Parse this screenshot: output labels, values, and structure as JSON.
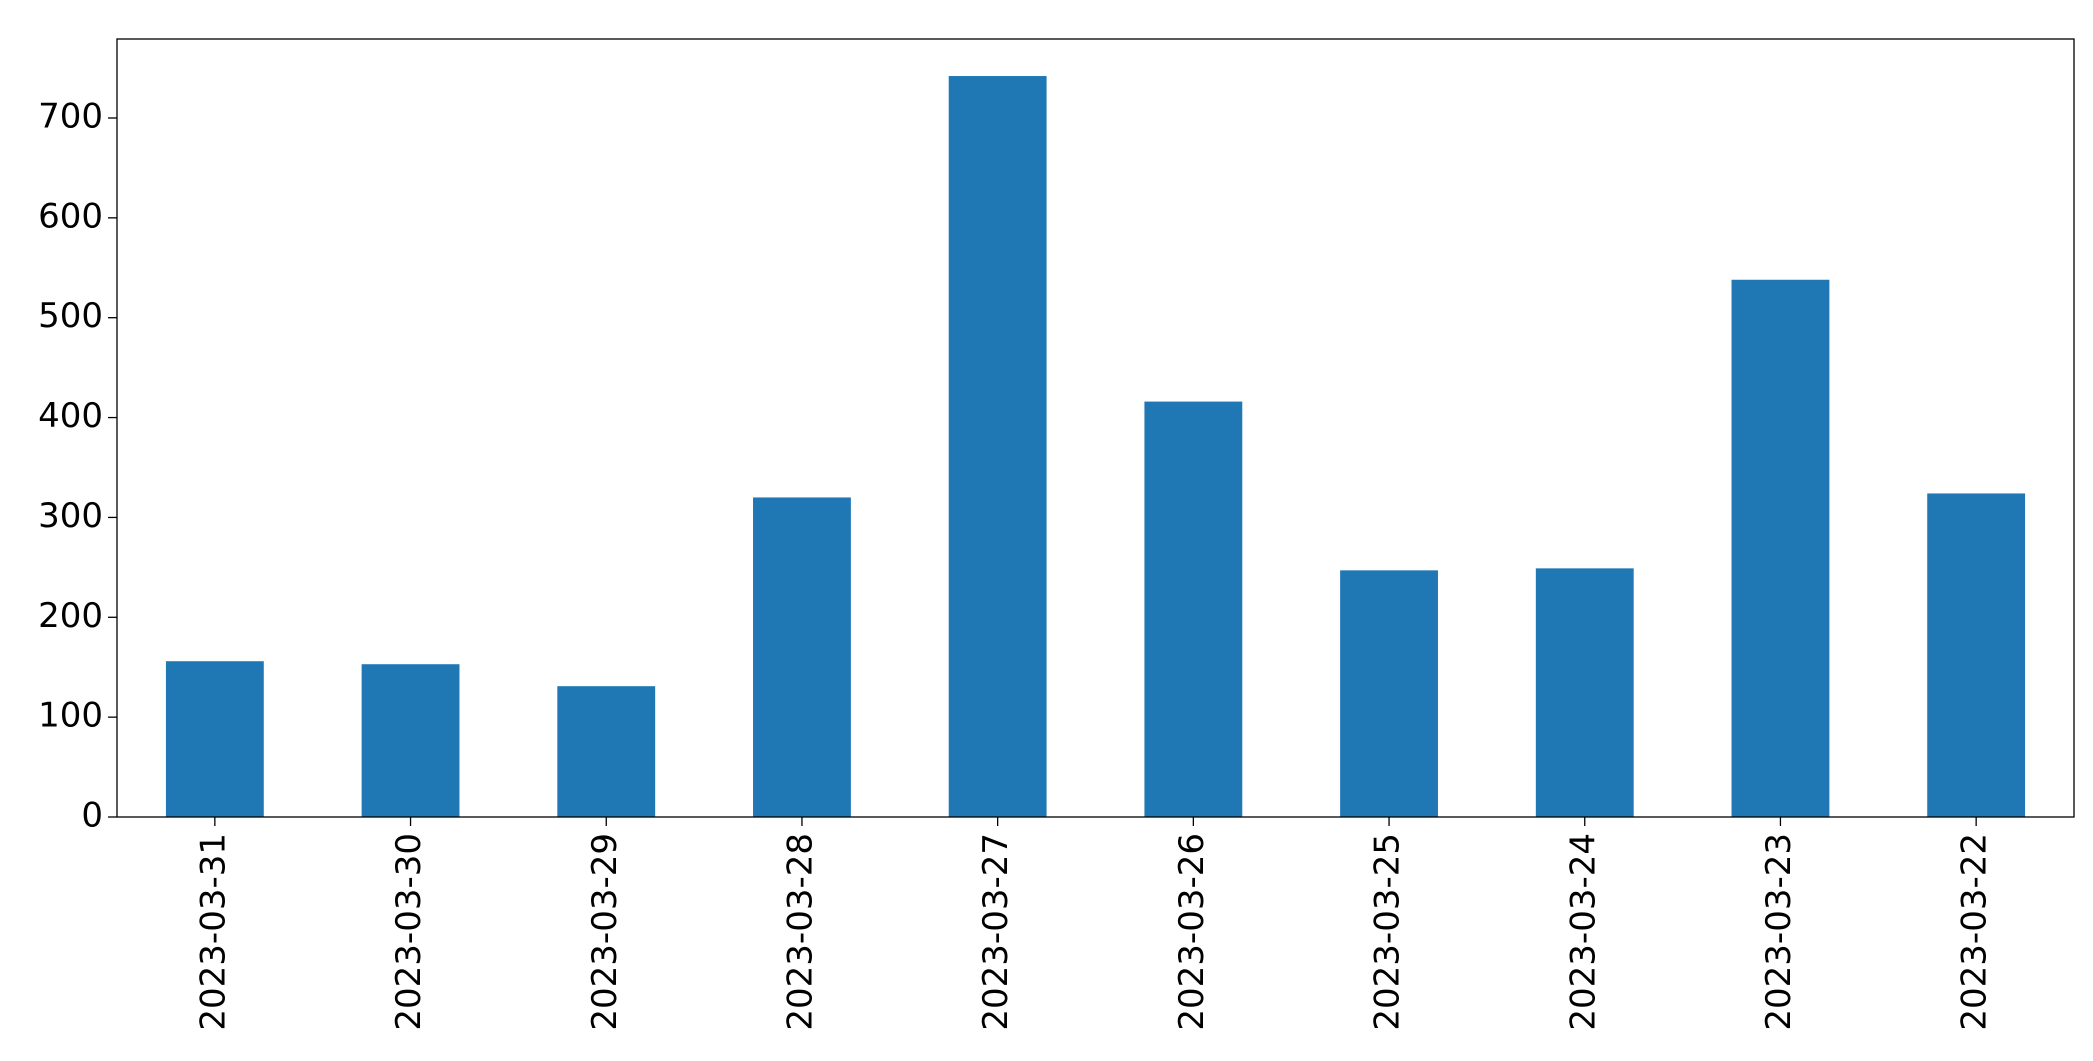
{
  "chart_data": {
    "type": "bar",
    "categories": [
      "2023-03-31",
      "2023-03-30",
      "2023-03-29",
      "2023-03-28",
      "2023-03-27",
      "2023-03-26",
      "2023-03-25",
      "2023-03-24",
      "2023-03-23",
      "2023-03-22"
    ],
    "values": [
      156,
      153,
      131,
      320,
      742,
      416,
      247,
      249,
      538,
      324
    ],
    "color": "#1f77b4",
    "ylim": [
      0,
      779.1
    ],
    "yticks": [
      0,
      100,
      200,
      300,
      400,
      500,
      600,
      700
    ],
    "grid": false
  }
}
